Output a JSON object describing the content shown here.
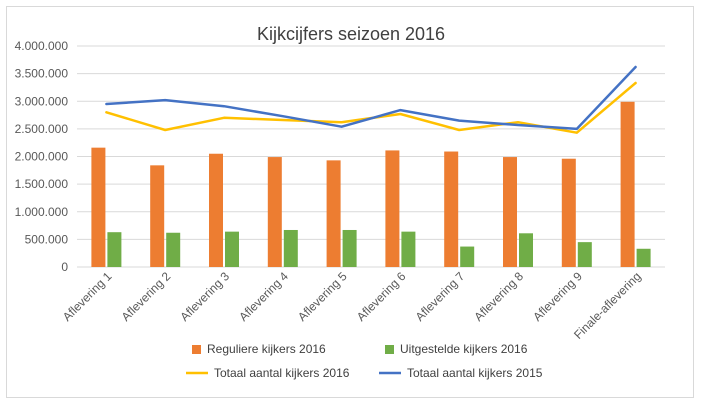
{
  "chart_data": {
    "type": "bar",
    "title": "Kijkcijfers seizoen 2016",
    "xlabel": "",
    "ylabel": "",
    "ylim": [
      0,
      4000000
    ],
    "y_ticks": [
      0,
      500000,
      1000000,
      1500000,
      2000000,
      2500000,
      3000000,
      3500000,
      4000000
    ],
    "y_tick_labels": [
      "0",
      "500.000",
      "1.000.000",
      "1.500.000",
      "2.000.000",
      "2.500.000",
      "3.000.000",
      "3.500.000",
      "4.000.000"
    ],
    "grid": true,
    "legend_position": "bottom",
    "categories": [
      "Aflevering 1",
      "Aflevering 2",
      "Aflevering 3",
      "Aflevering 4",
      "Aflevering 5",
      "Aflevering 6",
      "Aflevering 7",
      "Aflevering 8",
      "Aflevering 9",
      "Finale-aflevering"
    ],
    "series": [
      {
        "name": "Reguliere kijkers 2016",
        "type": "bar",
        "color": "#ED7D31",
        "values": [
          2160000,
          1840000,
          2050000,
          1990000,
          1930000,
          2110000,
          2090000,
          1990000,
          1960000,
          2990000
        ]
      },
      {
        "name": "Uitgestelde kijkers 2016",
        "type": "bar",
        "color": "#70AD47",
        "values": [
          630000,
          620000,
          640000,
          670000,
          670000,
          640000,
          370000,
          610000,
          450000,
          330000
        ]
      },
      {
        "name": "Totaal aantal kijkers 2016",
        "type": "line",
        "color": "#FFC000",
        "values": [
          2800000,
          2480000,
          2700000,
          2660000,
          2620000,
          2770000,
          2480000,
          2620000,
          2430000,
          3330000
        ]
      },
      {
        "name": "Totaal aantal kijkers 2015",
        "type": "line",
        "color": "#4472C4",
        "values": [
          2950000,
          3020000,
          2910000,
          2730000,
          2540000,
          2840000,
          2650000,
          2570000,
          2500000,
          3620000
        ]
      }
    ]
  }
}
